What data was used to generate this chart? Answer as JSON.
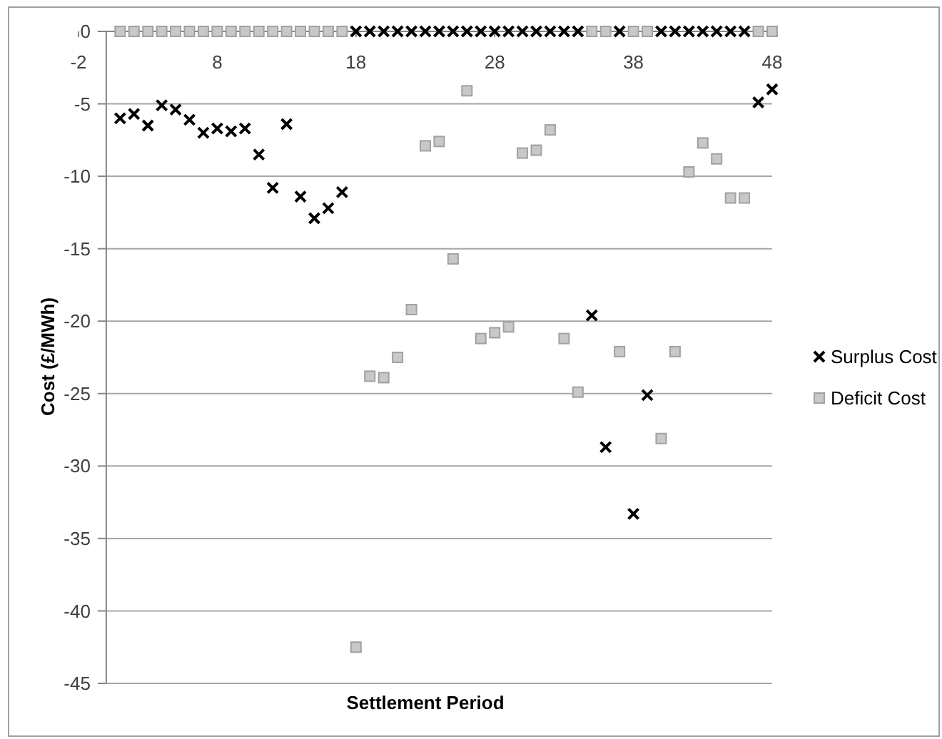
{
  "chart_data": {
    "type": "scatter",
    "xlabel": "Settlement Period",
    "ylabel": "Cost (£/MWh)",
    "x": [
      1,
      2,
      3,
      4,
      5,
      6,
      7,
      8,
      9,
      10,
      11,
      12,
      13,
      14,
      15,
      16,
      17,
      18,
      19,
      20,
      21,
      22,
      23,
      24,
      25,
      26,
      27,
      28,
      29,
      30,
      31,
      32,
      33,
      34,
      35,
      36,
      37,
      38,
      39,
      40,
      41,
      42,
      43,
      44,
      45,
      46,
      47,
      48
    ],
    "series": [
      {
        "name": "Surplus Cost",
        "color": "#000000",
        "marker": "cross",
        "values": [
          -6.0,
          -5.7,
          -6.5,
          -5.1,
          -5.4,
          -6.1,
          -7.0,
          -6.7,
          -6.9,
          -6.7,
          -8.5,
          -10.8,
          -6.4,
          -11.4,
          -12.9,
          -12.2,
          -11.1,
          0,
          0,
          0,
          0,
          0,
          0,
          0,
          0,
          0,
          0,
          0,
          0,
          0,
          0,
          0,
          0,
          0,
          -19.6,
          -28.7,
          0,
          -33.3,
          -25.1,
          0,
          0,
          0,
          0,
          0,
          0,
          0,
          -4.9,
          -4.0
        ]
      },
      {
        "name": "Deficit Cost",
        "color": "#c8c8c8",
        "marker": "square",
        "values": [
          0,
          0,
          0,
          0,
          0,
          0,
          0,
          0,
          0,
          0,
          0,
          0,
          0,
          0,
          0,
          0,
          0,
          -42.5,
          -23.8,
          -23.9,
          -22.5,
          -19.2,
          -7.9,
          -7.6,
          -15.7,
          -4.1,
          -21.2,
          -20.8,
          -20.4,
          -8.4,
          -8.2,
          -6.8,
          -21.2,
          -24.9,
          0,
          0,
          -22.1,
          0,
          0,
          -28.1,
          -22.1,
          -9.7,
          -7.7,
          -8.8,
          -11.5,
          -11.5,
          0,
          0
        ]
      }
    ],
    "xlim": [
      -2,
      48
    ],
    "xticks": [
      -2,
      8,
      18,
      28,
      38,
      48
    ],
    "ylim": [
      -45,
      0
    ],
    "yticks": [
      0,
      -5,
      -10,
      -15,
      -20,
      -25,
      -30,
      -35,
      -40,
      -45
    ],
    "grid": "y",
    "legend": "right"
  }
}
